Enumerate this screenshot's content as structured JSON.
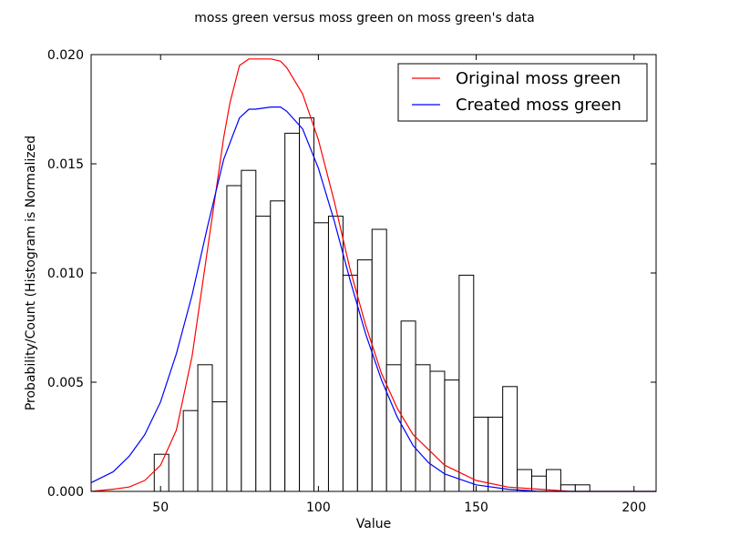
{
  "chart_data": {
    "type": "bar",
    "title": "moss green versus moss green on moss green's data",
    "xlabel": "Value",
    "ylabel": "Probability/Count (Histogram is Normalized",
    "xlim": [
      28,
      207
    ],
    "ylim": [
      0,
      0.02
    ],
    "x_ticks": [
      50,
      100,
      150,
      200
    ],
    "x_tick_labels": [
      "50",
      "100",
      "150",
      "200"
    ],
    "y_ticks": [
      0,
      0.005,
      0.01,
      0.015,
      0.02
    ],
    "y_tick_labels": [
      "0.000",
      "0.005",
      "0.010",
      "0.015",
      "0.020"
    ],
    "grid": false,
    "legend_position": "top-right",
    "histogram": {
      "bin_width": 4.6,
      "bin_starts": [
        48.0,
        52.6,
        57.2,
        61.8,
        66.4,
        71.0,
        75.6,
        80.2,
        84.8,
        89.4,
        94.0,
        98.6,
        103.2,
        107.8,
        112.4,
        117.0,
        121.6,
        126.2,
        130.8,
        135.4,
        140.0,
        144.6,
        149.2,
        153.8,
        158.4,
        163.0,
        167.6,
        172.2,
        176.8,
        181.4
      ],
      "values": [
        0.0017,
        0.0,
        0.0037,
        0.0058,
        0.0041,
        0.014,
        0.0147,
        0.0126,
        0.0133,
        0.0164,
        0.0171,
        0.0123,
        0.0126,
        0.0099,
        0.0106,
        0.012,
        0.0058,
        0.0078,
        0.0058,
        0.0055,
        0.0051,
        0.0099,
        0.0034,
        0.0034,
        0.0048,
        0.001,
        0.0007,
        0.001,
        0.0003,
        0.0003
      ]
    },
    "series": [
      {
        "name": "Original moss green",
        "color": "#ff0000",
        "x": [
          28,
          35,
          40,
          45,
          50,
          55,
          60,
          65,
          70,
          72,
          75,
          78,
          80,
          85,
          88,
          90,
          95,
          100,
          105,
          110,
          115,
          120,
          125,
          130,
          140,
          150,
          160,
          170,
          180,
          190,
          200,
          207
        ],
        "y": [
          0.0,
          0.0001,
          0.0002,
          0.0005,
          0.0012,
          0.0028,
          0.0062,
          0.0112,
          0.0162,
          0.0178,
          0.0195,
          0.0198,
          0.0198,
          0.0198,
          0.0197,
          0.0194,
          0.0182,
          0.0161,
          0.0133,
          0.0102,
          0.0076,
          0.0054,
          0.0038,
          0.0026,
          0.0012,
          0.0005,
          0.0002,
          0.0001,
          0.0,
          0.0,
          0.0,
          0.0
        ]
      },
      {
        "name": "Created moss green",
        "color": "#0000ff",
        "x": [
          28,
          35,
          40,
          45,
          50,
          55,
          60,
          65,
          70,
          75,
          78,
          80,
          85,
          88,
          90,
          95,
          100,
          105,
          110,
          115,
          120,
          125,
          130,
          135,
          140,
          150,
          160,
          170,
          180,
          190,
          207
        ],
        "y": [
          0.0004,
          0.0009,
          0.0016,
          0.0026,
          0.0041,
          0.0063,
          0.009,
          0.0122,
          0.0152,
          0.0171,
          0.0175,
          0.0175,
          0.0176,
          0.0176,
          0.0174,
          0.0166,
          0.0148,
          0.0124,
          0.0097,
          0.0072,
          0.0051,
          0.0034,
          0.0021,
          0.0013,
          0.0008,
          0.0003,
          0.0001,
          0.0,
          0.0,
          0.0,
          0.0
        ]
      }
    ]
  }
}
